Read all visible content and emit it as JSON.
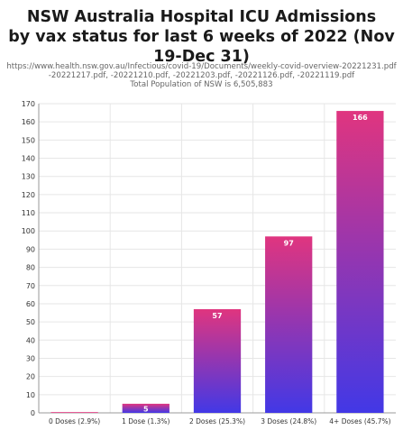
{
  "chart_data": {
    "type": "bar",
    "title_lines": [
      "NSW Australia Hospital ICU Admissions",
      "by vax status for last 6 weeks of 2022 (Nov 19-Dec 31)"
    ],
    "subtitle_lines": [
      "https://www.health.nsw.gov.au/Infectious/covid-19/Documents/weekly-covid-overview-20221231.pdf",
      "-20221217.pdf, -20221210.pdf, -20221203.pdf, -20221126.pdf, -20221119.pdf",
      "Total Population of NSW is 6,505,883"
    ],
    "categories": [
      "0 Doses (2.9%)",
      "1 Dose (1.3%)",
      "2 Doses (25.3%)",
      "3 Doses (24.8%)",
      "4+ Doses (45.7%)"
    ],
    "values": [
      0,
      5,
      57,
      97,
      166
    ],
    "data_labels": [
      "",
      "5",
      "57",
      "97",
      "166"
    ],
    "ylim": [
      0,
      170
    ],
    "yticks": [
      0,
      10,
      20,
      30,
      40,
      50,
      60,
      70,
      80,
      90,
      100,
      110,
      120,
      130,
      140,
      150,
      160,
      170
    ],
    "grid": true,
    "colors": {
      "bar_top": "#e0357f",
      "bar_bottom": "#4238e6",
      "grid": "#e6e6e6",
      "axis": "#999999",
      "label": "#ffffff"
    }
  }
}
